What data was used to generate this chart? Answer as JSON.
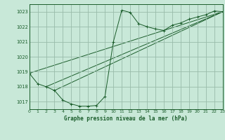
{
  "title": "Graphe pression niveau de la mer (hPa)",
  "bg_color": "#c8e8d8",
  "grid_color": "#99bbaa",
  "line_color": "#1a5c2a",
  "marker_color": "#1a5c2a",
  "xlim": [
    0,
    23
  ],
  "ylim": [
    1016.5,
    1023.5
  ],
  "yticks": [
    1017,
    1018,
    1019,
    1020,
    1021,
    1022,
    1023
  ],
  "xticks": [
    0,
    1,
    2,
    3,
    4,
    5,
    6,
    7,
    8,
    9,
    10,
    11,
    12,
    13,
    14,
    15,
    16,
    17,
    18,
    19,
    20,
    21,
    22,
    23
  ],
  "series1_x": [
    0,
    1,
    2,
    3,
    4,
    5,
    6,
    7,
    8,
    9,
    10,
    11,
    12,
    13,
    14,
    15,
    16,
    17,
    18,
    19,
    20,
    21,
    22,
    23
  ],
  "series1_y": [
    1018.9,
    1018.2,
    1018.0,
    1017.75,
    1017.1,
    1016.85,
    1016.7,
    1016.7,
    1016.75,
    1017.35,
    1021.0,
    1023.1,
    1022.95,
    1022.2,
    1022.0,
    1021.85,
    1021.75,
    1022.1,
    1022.25,
    1022.5,
    1022.65,
    1022.8,
    1023.05,
    1023.0
  ],
  "line2_x": [
    0,
    23
  ],
  "line2_y": [
    1018.9,
    1023.0
  ],
  "line3_x": [
    2,
    23
  ],
  "line3_y": [
    1018.0,
    1023.0
  ],
  "line4_x": [
    3,
    23
  ],
  "line4_y": [
    1017.75,
    1023.0
  ]
}
